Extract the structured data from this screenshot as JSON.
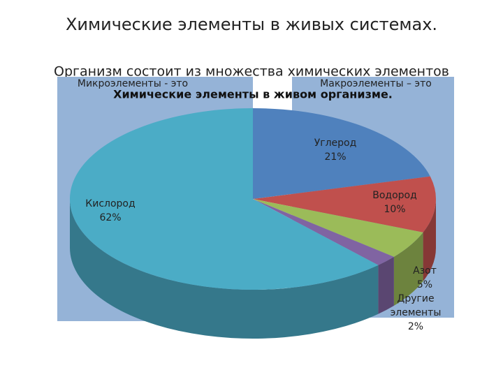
{
  "slide_title": "Химические элементы в живых системах.",
  "intro": "Организм состоит из множества химических элементов",
  "left_box": "Микроэлементы - это",
  "right_box": "Макроэлементы – это",
  "chart_data": {
    "type": "pie",
    "title": "Химические элементы в живом организме.",
    "categories": [
      "Углерод",
      "Водород",
      "Азот",
      "Другие элементы",
      "Кислород"
    ],
    "values": [
      21,
      10,
      5,
      2,
      62
    ],
    "value_labels": [
      "21%",
      "10%",
      "5%",
      "2%",
      "62%"
    ],
    "colors": [
      "#4f81bd",
      "#c0504d",
      "#9bbb59",
      "#8064a2",
      "#4bacc6"
    ]
  }
}
